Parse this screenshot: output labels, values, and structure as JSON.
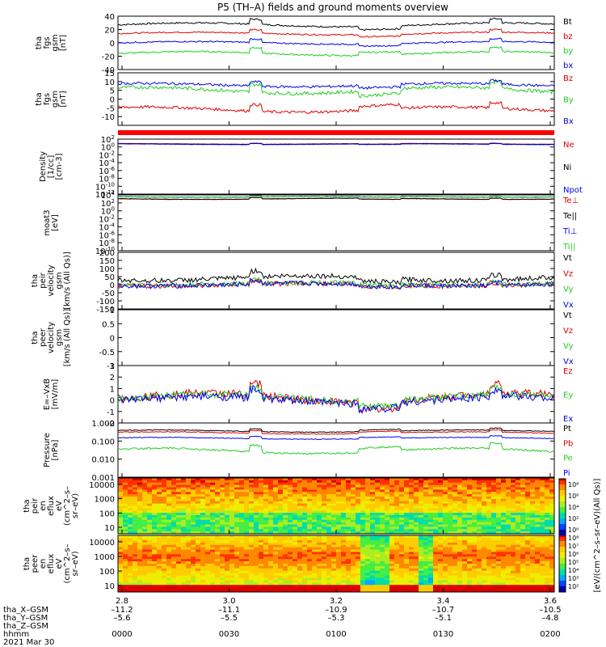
{
  "title": "P5 (TH–A) fields and ground moments overview",
  "colors": {
    "black": "#000000",
    "red": "#dd0000",
    "green": "#22cc22",
    "blue": "#0000ee",
    "sep": "#ff0000"
  },
  "chart_data": [
    {
      "type": "line",
      "ylabel": [
        "tha",
        "fgs",
        "gsm",
        "[nT]"
      ],
      "ylim": [
        -40,
        40
      ],
      "ticks": [
        40,
        20,
        0,
        -20,
        -40
      ],
      "series": [
        {
          "name": "Bt",
          "color": "black",
          "base": 27,
          "amp": 3,
          "noise": 1.2
        },
        {
          "name": "bz",
          "color": "red",
          "base": 14,
          "amp": 2,
          "noise": 1
        },
        {
          "name": "by",
          "color": "green",
          "base": -16,
          "amp": 3,
          "noise": 1.2
        },
        {
          "name": "bx",
          "color": "blue",
          "base": 0,
          "amp": 2,
          "noise": 1
        }
      ]
    },
    {
      "type": "line",
      "ylabel": [
        "tha",
        "fgs",
        "gsm",
        "[nT]"
      ],
      "ylim": [
        -15,
        15
      ],
      "ticks": [
        15,
        10,
        5,
        0,
        -5,
        -10
      ],
      "series": [
        {
          "name": "Bz",
          "color": "red",
          "base": -6,
          "amp": 1.5,
          "noise": 0.8
        },
        {
          "name": "By",
          "color": "green",
          "base": 5,
          "amp": 1.8,
          "noise": 1
        },
        {
          "name": "Bx",
          "color": "blue",
          "base": 8,
          "amp": 1,
          "noise": 0.7
        }
      ]
    },
    {
      "type": "line",
      "log": true,
      "ylabel": [
        "Density",
        "[1/cc]",
        "[cm-3]"
      ],
      "ylim": [
        -12,
        2
      ],
      "ticks": [
        2,
        0,
        -2,
        -4,
        -6,
        -8,
        -10,
        -12
      ],
      "series": [
        {
          "name": "Ne",
          "color": "red",
          "base": 0.8,
          "amp": 0.1,
          "noise": 0.04
        },
        {
          "name": "Ni",
          "color": "black",
          "base": 0.75,
          "amp": 0.1,
          "noise": 0.04
        },
        {
          "name": "Npot",
          "color": "blue",
          "base": 0.7,
          "amp": 0.1,
          "noise": 0.04
        }
      ]
    },
    {
      "type": "line",
      "log": true,
      "ylabel": [
        "moat3",
        "[eV]"
      ],
      "ylim": [
        -10,
        4
      ],
      "ticks": [
        4,
        2,
        0,
        -2,
        -4,
        -6,
        -8,
        -10
      ],
      "series": [
        {
          "name": "Te⊥",
          "color": "red",
          "base": 3.0,
          "amp": 0.15,
          "noise": 0.05
        },
        {
          "name": "Te||",
          "color": "black",
          "base": 3.05,
          "amp": 0.15,
          "noise": 0.05
        },
        {
          "name": "Ti⊥",
          "color": "blue",
          "base": 3.55,
          "amp": 0.1,
          "noise": 0.04
        },
        {
          "name": "Ti||",
          "color": "green",
          "base": 3.5,
          "amp": 0.1,
          "noise": 0.04
        }
      ]
    },
    {
      "type": "line",
      "ylabel": [
        "tha",
        "peir",
        "velocity",
        "gsm",
        "[km/s (All Qs)]"
      ],
      "ylim": [
        -150,
        200
      ],
      "ticks": [
        200,
        150,
        100,
        50,
        0,
        -50,
        -100,
        -150
      ],
      "series": [
        {
          "name": "Vt",
          "color": "black",
          "base": 40,
          "amp": 15,
          "noise": 15
        },
        {
          "name": "Vz",
          "color": "red",
          "base": 0,
          "amp": 8,
          "noise": 15
        },
        {
          "name": "Vy",
          "color": "green",
          "base": 5,
          "amp": 8,
          "noise": 15
        },
        {
          "name": "Vx",
          "color": "blue",
          "base": 0,
          "amp": 8,
          "noise": 15
        }
      ]
    },
    {
      "type": "line",
      "ylabel": [
        "tha",
        "peer",
        "velocity",
        "gsm",
        "[km/s (All Qs)]"
      ],
      "ylim": [
        -1,
        1
      ],
      "ticks": [
        1.0,
        0.5,
        0.0,
        -0.5,
        -1.0
      ],
      "series": [
        {
          "name": "Vt",
          "color": "black"
        },
        {
          "name": "Vz",
          "color": "red"
        },
        {
          "name": "Vy",
          "color": "green"
        },
        {
          "name": "Vx",
          "color": "blue"
        }
      ]
    },
    {
      "type": "line",
      "ylabel": [
        "E=–VxB",
        "[mV/m]"
      ],
      "ylim": [
        -2,
        3
      ],
      "ticks": [
        3,
        2,
        1,
        0,
        -1,
        -2
      ],
      "series": [
        {
          "name": "Ez",
          "color": "red",
          "base": 0.2,
          "amp": 0.4,
          "noise": 0.35
        },
        {
          "name": "Ey",
          "color": "green",
          "base": 0.2,
          "amp": 0.3,
          "noise": 0.3
        },
        {
          "name": "Ex",
          "color": "blue",
          "base": 0,
          "amp": 0.3,
          "noise": 0.35
        }
      ]
    },
    {
      "type": "line",
      "log": true,
      "ylabel": [
        "Pressure",
        "[nPa]"
      ],
      "ylim": [
        -3,
        0
      ],
      "ticklabels": [
        "1.000",
        "0.100",
        "0.010",
        "0.001"
      ],
      "ticks": [
        0,
        -1,
        -2,
        -3
      ],
      "series": [
        {
          "name": "Pt",
          "color": "black",
          "base": -0.45,
          "amp": 0.06,
          "noise": 0.02
        },
        {
          "name": "Pb",
          "color": "red",
          "base": -0.55,
          "amp": 0.06,
          "noise": 0.02
        },
        {
          "name": "Pe",
          "color": "green",
          "base": -1.55,
          "amp": 0.15,
          "noise": 0.05
        },
        {
          "name": "Pi",
          "color": "blue",
          "base": -0.85,
          "amp": 0.05,
          "noise": 0.02
        }
      ]
    },
    {
      "type": "heatmap",
      "ylabel": [
        "tha",
        "peir",
        "en",
        "eflux",
        "eV",
        "(cm^2–s–",
        "sr–eV)"
      ],
      "ylim": [
        5,
        30000
      ],
      "ticklabels": [
        "10000",
        "1000",
        "100",
        "10"
      ]
    },
    {
      "type": "heatmap",
      "ylabel": [
        "tha",
        "peer",
        "en",
        "eflux",
        "eV",
        "(cm^2–s–",
        "sr–eV)"
      ],
      "ylim": [
        5,
        30000
      ],
      "ticklabels": [
        "10000",
        "1000",
        "100",
        "10"
      ]
    }
  ],
  "colorbar": {
    "label": "[eV/(cm^2–s–sr–eV)(All Qs)]",
    "upper": [
      "10⁸",
      "10⁶",
      "10⁴",
      "10²",
      "10⁰"
    ],
    "lower": [
      "10⁸",
      "10⁷",
      "10⁶",
      "10⁵",
      "10⁴",
      "10³",
      "10²"
    ]
  },
  "xaxis": {
    "ticks": [
      "2.8",
      "3.0",
      "3.2",
      "3.4",
      "3.6"
    ],
    "rows": [
      {
        "label": "tha_X–GSM",
        "values": [
          "–11.2",
          "–11.1",
          "–10.9",
          "–10.7",
          "–10.5"
        ]
      },
      {
        "label": "tha_Y–GSM",
        "values": [
          "–5.6",
          "–5.5",
          "–5.3",
          "–5.1",
          "–4.8"
        ]
      },
      {
        "label": "tha_Z–GSM",
        "values": [
          "",
          "",
          "",
          "",
          ""
        ]
      },
      {
        "label": "hhmm",
        "values": [
          "0000",
          "0030",
          "0100",
          "0130",
          "0200"
        ]
      }
    ],
    "date": "2021 Mar 30"
  }
}
